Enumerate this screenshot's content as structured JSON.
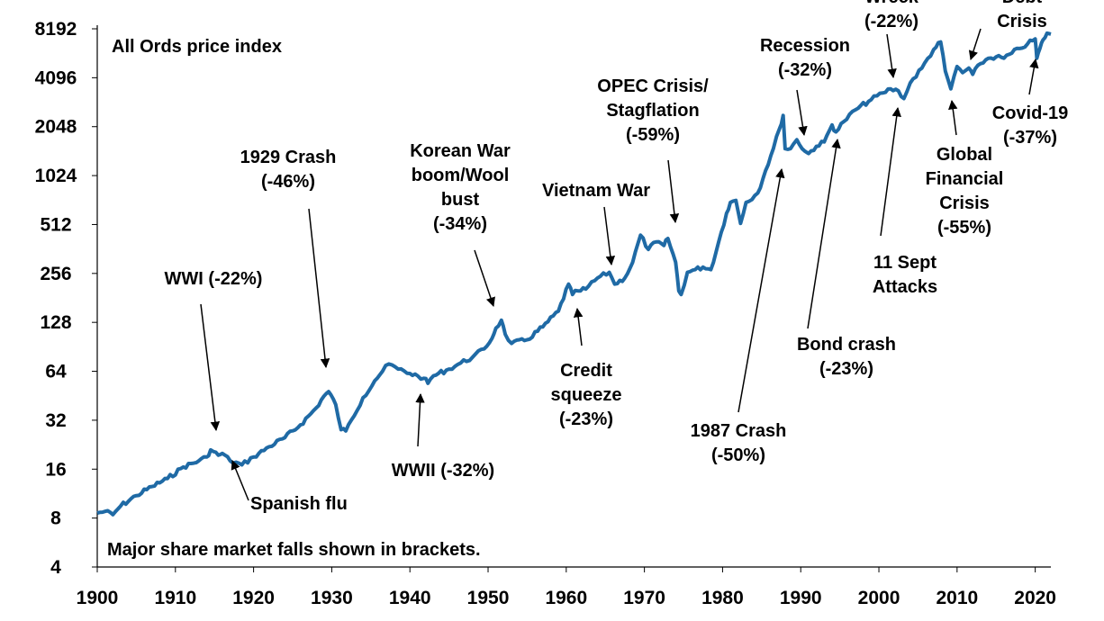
{
  "chart_data": {
    "type": "line",
    "title": "",
    "xlabel": "",
    "ylabel": "",
    "scale_y": "log2",
    "xlim": [
      1900,
      2022
    ],
    "ylim": [
      4,
      8192
    ],
    "grid": false,
    "legend": "none",
    "y_ticks": [
      "4",
      "8",
      "16",
      "32",
      "64",
      "128",
      "256",
      "512",
      "1024",
      "2048",
      "4096",
      "8192"
    ],
    "x_ticks": [
      "1900",
      "1910",
      "1920",
      "1930",
      "1940",
      "1950",
      "1960",
      "1970",
      "1980",
      "1990",
      "2000",
      "2010",
      "2020"
    ],
    "inner_label": "All Ords price index",
    "footnote": "Major share market falls shown in brackets.",
    "line_color": "#1f6aa5",
    "series": [
      {
        "x": [
          1900.0,
          1901.0,
          1902.0,
          1903.0,
          1905.0,
          1907.0,
          1909.0,
          1911.0,
          1913.0,
          1914.0,
          1914.5,
          1915.5,
          1916.0,
          1917.0,
          1918.5,
          1920.0,
          1922.0,
          1924.0,
          1926.0,
          1928.0,
          1929.0,
          1929.6,
          1930.5,
          1931.2,
          1931.8,
          1932.5,
          1934.0,
          1935.5,
          1936.5,
          1937.3,
          1938.5,
          1940.0,
          1941.0,
          1941.8,
          1942.3,
          1943.0,
          1945.0,
          1946.5,
          1948.0,
          1949.5,
          1950.5,
          1951.0,
          1951.7,
          1952.2,
          1953.0,
          1955.0,
          1957.0,
          1959.0,
          1960.3,
          1960.8,
          1961.5,
          1962.5,
          1964.0,
          1965.5,
          1966.2,
          1967.5,
          1968.5,
          1969.5,
          1970.5,
          1971.5,
          1972.5,
          1973.0,
          1974.0,
          1974.4,
          1974.7,
          1975.5,
          1976.5,
          1977.5,
          1978.5,
          1979.5,
          1980.5,
          1981.0,
          1981.7,
          1982.3,
          1983.0,
          1984.5,
          1985.5,
          1986.5,
          1987.3,
          1987.75,
          1988.0,
          1988.7,
          1989.5,
          1990.5,
          1991.0,
          1992.0,
          1993.0,
          1994.0,
          1994.5,
          1995.5,
          1997.0,
          1999.0,
          2000.5,
          2001.5,
          2002.5,
          2003.2,
          2004.0,
          2005.5,
          2007.0,
          2007.9,
          2008.5,
          2009.2,
          2010.0,
          2010.7,
          2011.5,
          2012.0,
          2013.0,
          2014.0,
          2015.0,
          2016.0,
          2017.0,
          2018.0,
          2019.0,
          2020.0,
          2020.2,
          2020.6,
          2021.0,
          2021.5,
          2022.0
        ],
        "y": [
          8.6,
          8.8,
          8.4,
          9.5,
          11.0,
          12.5,
          14.0,
          16.5,
          18.0,
          19.0,
          21.0,
          19.5,
          20.0,
          18.0,
          17.0,
          19.0,
          22.0,
          25.0,
          30.0,
          38.0,
          45.0,
          48.0,
          40.0,
          28.0,
          27.5,
          32.0,
          44.0,
          56.0,
          64.0,
          71.0,
          66.0,
          62.0,
          60.0,
          58.0,
          54.0,
          60.0,
          66.0,
          72.0,
          78.0,
          88.0,
          102.0,
          118.0,
          132.0,
          108.0,
          95.0,
          100.0,
          120.0,
          150.0,
          220.0,
          190.0,
          200.0,
          205.0,
          240.0,
          260.0,
          220.0,
          240.0,
          300.0,
          440.0,
          360.0,
          400.0,
          380.0,
          420.0,
          300.0,
          200.0,
          190.0,
          260.0,
          270.0,
          280.0,
          270.0,
          400.0,
          600.0,
          700.0,
          720.0,
          520.0,
          700.0,
          800.0,
          1100.0,
          1500.0,
          2000.0,
          2400.0,
          1500.0,
          1500.0,
          1700.0,
          1450.0,
          1400.0,
          1550.0,
          1650.0,
          2100.0,
          1900.0,
          2200.0,
          2600.0,
          3000.0,
          3300.0,
          3500.0,
          3400.0,
          3050.0,
          3800.0,
          4700.0,
          6100.0,
          6800.0,
          4500.0,
          3500.0,
          4800.0,
          4400.0,
          4700.0,
          4300.0,
          5000.0,
          5400.0,
          5500.0,
          5400.0,
          5800.0,
          6200.0,
          6600.0,
          7100.0,
          5400.0,
          6200.0,
          7000.0,
          7700.0,
          7600.0
        ]
      }
    ],
    "annotations": [
      {
        "lines": [
          "WWI (-22%)"
        ]
      },
      {
        "lines": [
          "Spanish flu"
        ]
      },
      {
        "lines": [
          "1929 Crash",
          "(-46%)"
        ]
      },
      {
        "lines": [
          "WWII (-32%)"
        ]
      },
      {
        "lines": [
          "Korean War",
          "boom/Wool",
          "bust",
          "(-34%)"
        ]
      },
      {
        "lines": [
          "Credit",
          "squeeze",
          "(-23%)"
        ]
      },
      {
        "lines": [
          "Vietnam War"
        ]
      },
      {
        "lines": [
          "OPEC Crisis/",
          "Stagflation",
          "(-59%)"
        ]
      },
      {
        "lines": [
          "1987 Crash",
          "(-50%)"
        ]
      },
      {
        "lines": [
          "Recession",
          "(-32%)"
        ]
      },
      {
        "lines": [
          "Bond crash",
          "(-23%)"
        ]
      },
      {
        "lines": [
          "11 Sept",
          "Attacks"
        ]
      },
      {
        "lines": [
          "Wreck",
          "(-22%)"
        ]
      },
      {
        "lines": [
          "Global",
          "Financial",
          "Crisis",
          "(-55%)"
        ]
      },
      {
        "lines": [
          "Debt",
          "Crisis"
        ]
      },
      {
        "lines": [
          "Covid-19",
          "(-37%)"
        ]
      }
    ]
  }
}
